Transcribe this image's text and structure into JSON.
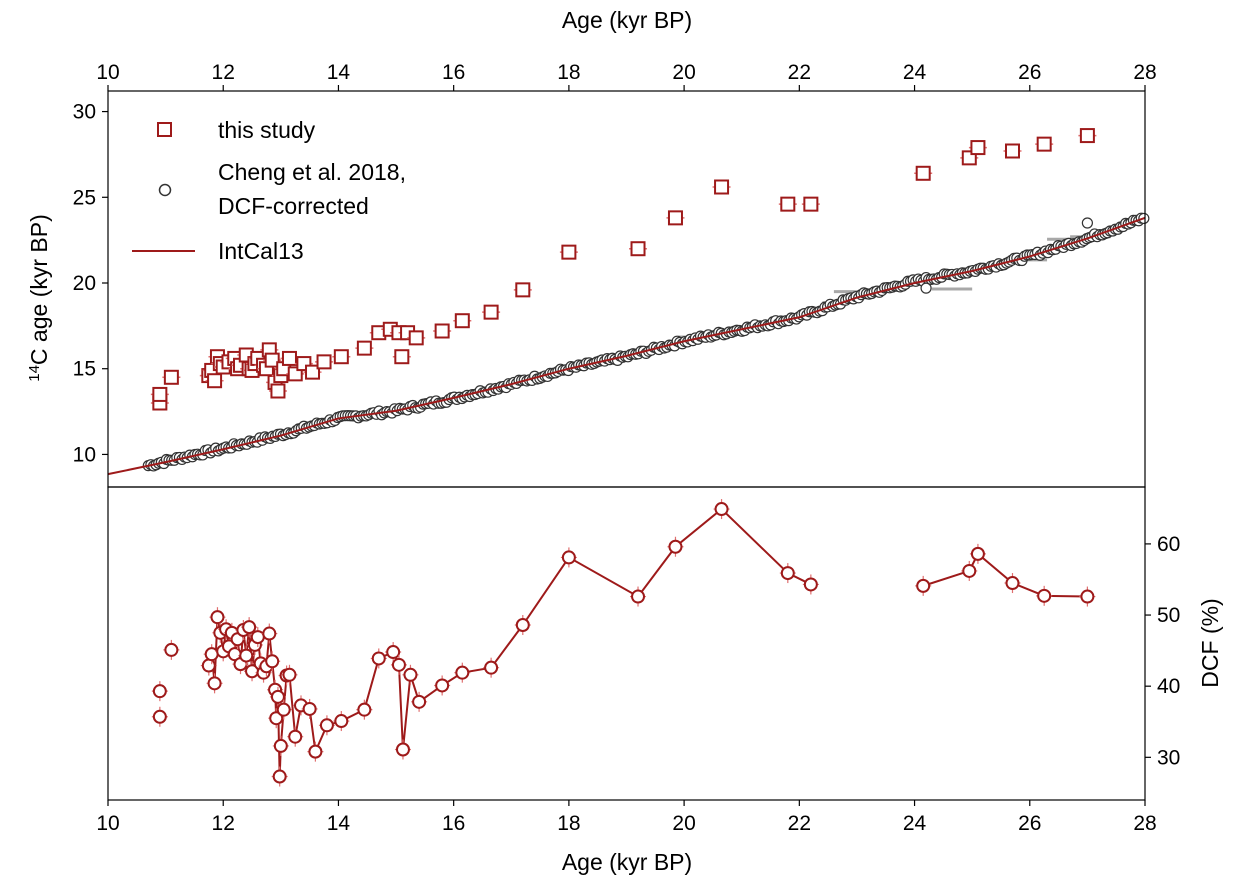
{
  "chart_data": [
    {
      "panel": "top",
      "type": "scatter",
      "x_top_label": "Age (kyr BP)",
      "ylabel_main": "C age (kyr BP)",
      "ylabel_sup": "14",
      "xlim": [
        10,
        28
      ],
      "ylim": [
        8.1,
        31.2
      ],
      "xticks": [
        "10",
        "12",
        "14",
        "16",
        "18",
        "20",
        "22",
        "24",
        "26",
        "28"
      ],
      "yticks": [
        "10",
        "15",
        "20",
        "25",
        "30"
      ],
      "legend_position": "upper-left",
      "legend": [
        {
          "label": "this study",
          "marker": "square",
          "color": "#9e1a1a"
        },
        {
          "label": "Cheng et al. 2018,",
          "label2": "DCF-corrected",
          "marker": "circle",
          "color": "#333333"
        },
        {
          "label": "IntCal13",
          "marker": "line",
          "color": "#9e1a1a"
        }
      ],
      "series": [
        {
          "name": "this study",
          "color": "#9e1a1a",
          "points": [
            [
              10.9,
              13.0
            ],
            [
              10.9,
              13.5
            ],
            [
              11.1,
              14.5
            ],
            [
              11.75,
              14.6
            ],
            [
              11.8,
              14.9
            ],
            [
              11.85,
              14.3
            ],
            [
              11.9,
              15.7
            ],
            [
              11.95,
              15.3
            ],
            [
              12.0,
              15.1
            ],
            [
              12.1,
              15.4
            ],
            [
              12.2,
              15.6
            ],
            [
              12.25,
              15.0
            ],
            [
              12.3,
              15.2
            ],
            [
              12.4,
              15.8
            ],
            [
              12.45,
              15.0
            ],
            [
              12.5,
              14.9
            ],
            [
              12.55,
              15.3
            ],
            [
              12.6,
              15.6
            ],
            [
              12.7,
              15.2
            ],
            [
              12.75,
              15.0
            ],
            [
              12.8,
              16.1
            ],
            [
              12.85,
              15.5
            ],
            [
              12.9,
              14.2
            ],
            [
              12.95,
              13.7
            ],
            [
              13.0,
              14.6
            ],
            [
              13.05,
              15.0
            ],
            [
              13.15,
              15.6
            ],
            [
              13.25,
              14.7
            ],
            [
              13.4,
              15.3
            ],
            [
              13.55,
              14.8
            ],
            [
              13.75,
              15.4
            ],
            [
              14.05,
              15.7
            ],
            [
              14.45,
              16.2
            ],
            [
              14.7,
              17.1
            ],
            [
              14.9,
              17.3
            ],
            [
              15.05,
              17.1
            ],
            [
              15.1,
              15.7
            ],
            [
              15.2,
              17.1
            ],
            [
              15.35,
              16.8
            ],
            [
              15.8,
              17.2
            ],
            [
              16.15,
              17.8
            ],
            [
              16.65,
              18.3
            ],
            [
              17.2,
              19.6
            ],
            [
              18.0,
              21.8
            ],
            [
              19.2,
              22.0
            ],
            [
              19.85,
              23.8
            ],
            [
              20.65,
              25.6
            ],
            [
              21.8,
              24.6
            ],
            [
              22.2,
              24.6
            ],
            [
              24.15,
              26.4
            ],
            [
              24.95,
              27.3
            ],
            [
              25.1,
              27.9
            ],
            [
              25.7,
              27.7
            ],
            [
              26.25,
              28.1
            ],
            [
              27.0,
              28.6
            ]
          ]
        },
        {
          "name": "Cheng et al. 2018, DCF-corrected",
          "color": "#333333",
          "anchors": [
            [
              10.7,
              9.35
            ],
            [
              11.0,
              9.6
            ],
            [
              12.0,
              10.35
            ],
            [
              13.0,
              11.15
            ],
            [
              14.0,
              12.1
            ],
            [
              15.0,
              12.55
            ],
            [
              16.0,
              13.25
            ],
            [
              17.0,
              14.1
            ],
            [
              18.0,
              15.0
            ],
            [
              19.0,
              15.7
            ],
            [
              20.0,
              16.6
            ],
            [
              21.0,
              17.3
            ],
            [
              22.0,
              18.0
            ],
            [
              23.0,
              19.2
            ],
            [
              24.0,
              20.1
            ],
            [
              25.0,
              20.7
            ],
            [
              26.0,
              21.55
            ],
            [
              27.0,
              22.6
            ],
            [
              28.0,
              23.8
            ]
          ],
          "outliers": [
            [
              24.2,
              19.7
            ],
            [
              27.0,
              23.5
            ]
          ]
        },
        {
          "name": "IntCal13",
          "color": "#9e1a1a",
          "points": [
            [
              10.0,
              8.85
            ],
            [
              10.5,
              9.2
            ],
            [
              11.0,
              9.55
            ],
            [
              12.0,
              10.3
            ],
            [
              13.0,
              11.1
            ],
            [
              14.0,
              12.1
            ],
            [
              15.0,
              12.55
            ],
            [
              16.0,
              13.3
            ],
            [
              17.0,
              14.1
            ],
            [
              18.0,
              15.0
            ],
            [
              19.0,
              15.75
            ],
            [
              20.0,
              16.6
            ],
            [
              21.0,
              17.3
            ],
            [
              22.0,
              18.0
            ],
            [
              23.0,
              19.15
            ],
            [
              24.0,
              20.0
            ],
            [
              25.0,
              20.7
            ],
            [
              26.0,
              21.55
            ],
            [
              27.0,
              22.6
            ],
            [
              28.0,
              23.8
            ]
          ]
        }
      ],
      "gray_error_bars": [
        [
          19.9,
          20.3,
          16.85
        ],
        [
          22.4,
          22.6,
          18.85
        ],
        [
          22.6,
          23.3,
          19.5
        ],
        [
          24.3,
          25.0,
          19.65
        ],
        [
          25.9,
          26.3,
          21.35
        ],
        [
          26.3,
          27.1,
          22.55
        ],
        [
          26.7,
          27.4,
          22.7
        ]
      ]
    },
    {
      "panel": "bottom",
      "type": "line",
      "xlabel": "Age (kyr BP)",
      "ylabel": "DCF (%)",
      "xlim": [
        10,
        28
      ],
      "ylim": [
        24,
        68
      ],
      "xticks": [
        "10",
        "12",
        "14",
        "16",
        "18",
        "20",
        "22",
        "24",
        "26",
        "28"
      ],
      "yticks": [
        "30",
        "40",
        "50",
        "60"
      ],
      "color": "#9e1a1a",
      "segments": [
        [
          [
            10.9,
            35.7
          ]
        ],
        [
          [
            10.9,
            39.3
          ]
        ],
        [
          [
            11.1,
            45.1
          ]
        ],
        [
          [
            11.75,
            42.9
          ],
          [
            11.8,
            44.5
          ],
          [
            11.85,
            40.4
          ],
          [
            11.9,
            49.7
          ],
          [
            11.95,
            47.5
          ],
          [
            12.0,
            44.9
          ],
          [
            12.05,
            48.0
          ],
          [
            12.1,
            45.6
          ],
          [
            12.15,
            47.5
          ],
          [
            12.2,
            44.5
          ],
          [
            12.25,
            46.6
          ],
          [
            12.3,
            43.1
          ],
          [
            12.35,
            47.9
          ],
          [
            12.4,
            44.3
          ],
          [
            12.45,
            48.3
          ],
          [
            12.5,
            42.1
          ],
          [
            12.55,
            45.8
          ],
          [
            12.6,
            46.9
          ],
          [
            12.65,
            43.2
          ],
          [
            12.7,
            41.9
          ],
          [
            12.75,
            42.8
          ],
          [
            12.8,
            47.4
          ],
          [
            12.85,
            43.5
          ],
          [
            12.9,
            39.5
          ],
          [
            12.92,
            35.5
          ],
          [
            12.95,
            38.5
          ],
          [
            12.98,
            27.3
          ],
          [
            13.0,
            31.6
          ],
          [
            13.05,
            36.7
          ],
          [
            13.1,
            41.5
          ],
          [
            13.15,
            41.6
          ],
          [
            13.25,
            32.9
          ],
          [
            13.35,
            37.3
          ],
          [
            13.5,
            36.8
          ],
          [
            13.6,
            30.8
          ],
          [
            13.8,
            34.5
          ],
          [
            14.05,
            35.1
          ],
          [
            14.45,
            36.7
          ],
          [
            14.7,
            43.9
          ],
          [
            14.95,
            44.8
          ],
          [
            15.05,
            43.0
          ],
          [
            15.12,
            31.1
          ],
          [
            15.25,
            41.6
          ],
          [
            15.4,
            37.8
          ],
          [
            15.8,
            40.1
          ],
          [
            16.15,
            41.9
          ],
          [
            16.65,
            42.6
          ],
          [
            17.2,
            48.6
          ],
          [
            18.0,
            58.1
          ],
          [
            19.2,
            52.6
          ],
          [
            19.85,
            59.6
          ],
          [
            20.65,
            64.9
          ],
          [
            21.8,
            55.9
          ],
          [
            22.2,
            54.3
          ]
        ],
        [
          [
            24.15,
            54.1
          ],
          [
            24.95,
            56.2
          ],
          [
            25.1,
            58.6
          ],
          [
            25.7,
            54.5
          ],
          [
            26.25,
            52.7
          ],
          [
            27.0,
            52.6
          ]
        ]
      ]
    }
  ]
}
